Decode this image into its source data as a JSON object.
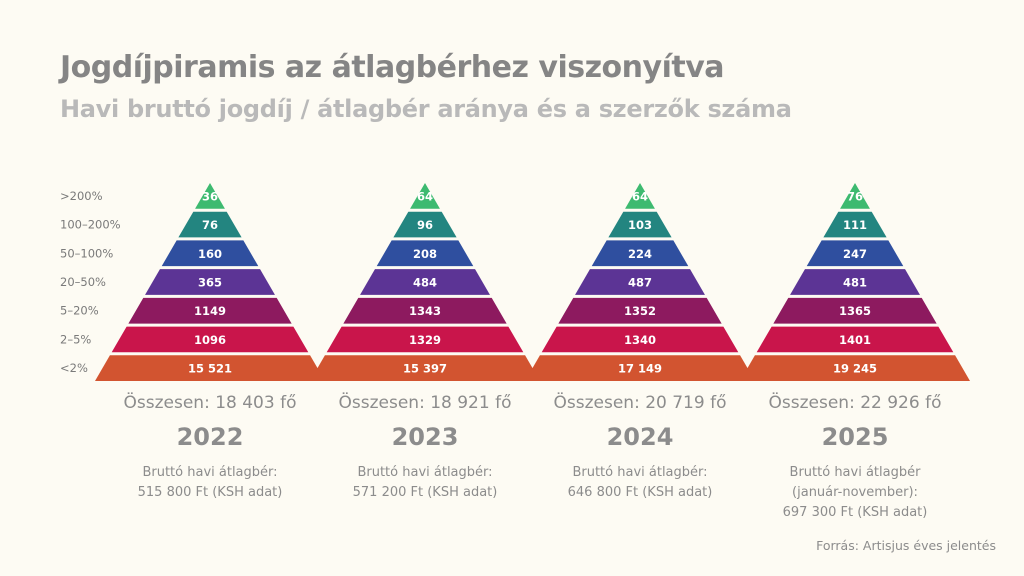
{
  "header": {
    "title": "Jogdíjpiramis az átlagbérhez viszonyítva",
    "subtitle": "Havi bruttó jogdíj / átlagbér aránya és a szerzők száma"
  },
  "chart_data": {
    "type": "pyramid",
    "categories": [
      ">200%",
      "100–200%",
      "50–100%",
      "20–50%",
      "5–20%",
      "2–5%",
      "<2%"
    ],
    "colors": [
      "#3dba70",
      "#238580",
      "#2f4f9f",
      "#5c3495",
      "#8d1a5f",
      "#c9154b",
      "#d25430"
    ],
    "series": [
      {
        "name": "2022",
        "values": [
          36,
          76,
          160,
          365,
          1149,
          1096,
          15521
        ],
        "labels": [
          "36",
          "76",
          "160",
          "365",
          "1149",
          "1096",
          "15 521"
        ]
      },
      {
        "name": "2023",
        "values": [
          64,
          96,
          208,
          484,
          1343,
          1329,
          15397
        ],
        "labels": [
          "64",
          "96",
          "208",
          "484",
          "1343",
          "1329",
          "15 397"
        ]
      },
      {
        "name": "2024",
        "values": [
          64,
          103,
          224,
          487,
          1352,
          1340,
          17149
        ],
        "labels": [
          "64",
          "103",
          "224",
          "487",
          "1352",
          "1340",
          "17 149"
        ]
      },
      {
        "name": "2025",
        "values": [
          76,
          111,
          247,
          481,
          1365,
          1401,
          19245
        ],
        "labels": [
          "76",
          "111",
          "247",
          "481",
          "1365",
          "1401",
          "19 245"
        ]
      }
    ]
  },
  "columns": [
    {
      "total": "Összesen: 18 403 fő",
      "year": "2022",
      "note": "Bruttó havi átlagbér:\n515 800 Ft (KSH adat)"
    },
    {
      "total": "Összesen: 18 921 fő",
      "year": "2023",
      "note": "Bruttó havi átlagbér:\n571 200 Ft (KSH adat)"
    },
    {
      "total": "Összesen: 20 719 fő",
      "year": "2024",
      "note": "Bruttó havi átlagbér:\n646 800 Ft (KSH adat)"
    },
    {
      "total": "Összesen: 22 926 fő",
      "year": "2025",
      "note": "Bruttó havi átlagbér\n(január-november):\n697 300 Ft (KSH adat)"
    }
  ],
  "footer": {
    "source": "Forrás: Artisjus éves jelentés"
  }
}
